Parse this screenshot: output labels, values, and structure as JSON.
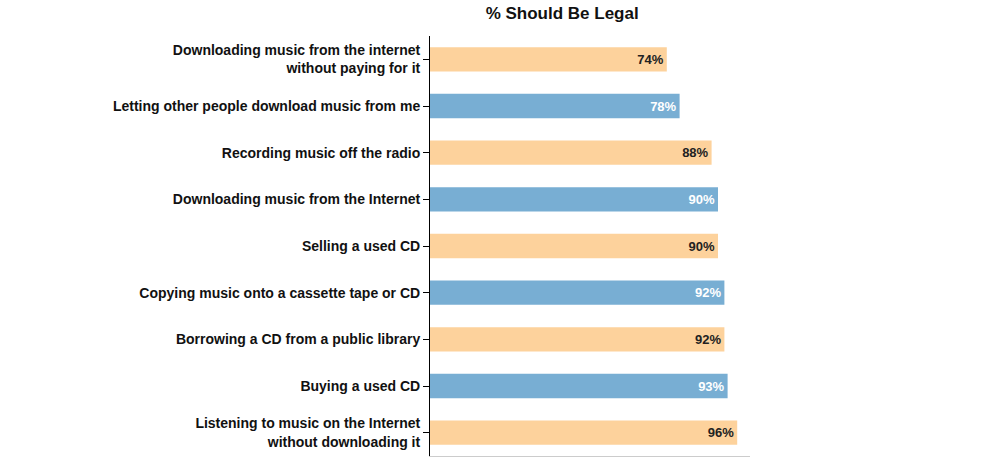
{
  "chart_data": {
    "type": "bar",
    "title": "% Should Be Legal",
    "orientation": "horizontal",
    "categories": [
      "Downloading music from the internet\nwithout paying for it",
      "Letting other people download music from me",
      "Recording music off the radio",
      "Downloading music from the Internet",
      "Selling a used CD",
      "Copying music onto a cassette tape or CD",
      "Borrowing a CD from a public library",
      "Buying a used CD",
      "Listening to music on the Internet\nwithout downloading it"
    ],
    "values": [
      74,
      78,
      88,
      90,
      90,
      92,
      92,
      93,
      96
    ],
    "value_labels": [
      "74%",
      "78%",
      "88%",
      "90%",
      "90%",
      "92%",
      "92%",
      "93%",
      "96%"
    ],
    "colors": [
      "#fdd29c",
      "#78aed3",
      "#fdd29c",
      "#78aed3",
      "#fdd29c",
      "#78aed3",
      "#fdd29c",
      "#78aed3",
      "#fdd29c"
    ],
    "data_labels": true,
    "tick_labels": "y",
    "xlim": [
      0,
      100
    ],
    "grid": false
  }
}
